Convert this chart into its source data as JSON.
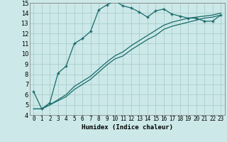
{
  "title": "",
  "xlabel": "Humidex (Indice chaleur)",
  "background_color": "#cce8e8",
  "grid_color": "#aacece",
  "line_color": "#1a6b6b",
  "xlim": [
    -0.5,
    23.5
  ],
  "ylim": [
    4,
    15
  ],
  "xticks": [
    0,
    1,
    2,
    3,
    4,
    5,
    6,
    7,
    8,
    9,
    10,
    11,
    12,
    13,
    14,
    15,
    16,
    17,
    18,
    19,
    20,
    21,
    22,
    23
  ],
  "yticks": [
    4,
    5,
    6,
    7,
    8,
    9,
    10,
    11,
    12,
    13,
    14,
    15
  ],
  "line1_x": [
    0,
    1,
    2,
    3,
    4,
    5,
    6,
    7,
    8,
    9,
    10,
    11,
    12,
    13,
    14,
    15,
    16,
    17,
    18,
    19,
    20,
    21,
    22,
    23
  ],
  "line1_y": [
    6.3,
    4.6,
    5.2,
    8.1,
    8.8,
    11.0,
    11.5,
    12.2,
    14.3,
    14.8,
    15.2,
    14.7,
    14.5,
    14.1,
    13.6,
    14.2,
    14.4,
    13.9,
    13.7,
    13.5,
    13.5,
    13.2,
    13.2,
    13.8
  ],
  "line2_x": [
    0,
    1,
    2,
    3,
    4,
    5,
    6,
    7,
    8,
    9,
    10,
    11,
    12,
    13,
    14,
    15,
    16,
    17,
    18,
    19,
    20,
    21,
    22,
    23
  ],
  "line2_y": [
    4.6,
    4.6,
    5.0,
    5.5,
    6.0,
    6.8,
    7.3,
    7.8,
    8.5,
    9.2,
    9.8,
    10.2,
    10.8,
    11.3,
    11.8,
    12.3,
    12.8,
    13.1,
    13.3,
    13.5,
    13.6,
    13.7,
    13.8,
    14.0
  ],
  "line3_x": [
    0,
    1,
    2,
    3,
    4,
    5,
    6,
    7,
    8,
    9,
    10,
    11,
    12,
    13,
    14,
    15,
    16,
    17,
    18,
    19,
    20,
    21,
    22,
    23
  ],
  "line3_y": [
    4.6,
    4.6,
    5.0,
    5.4,
    5.8,
    6.5,
    7.0,
    7.5,
    8.2,
    8.9,
    9.5,
    9.8,
    10.4,
    10.9,
    11.4,
    11.8,
    12.4,
    12.7,
    12.9,
    13.1,
    13.3,
    13.5,
    13.6,
    13.8
  ]
}
